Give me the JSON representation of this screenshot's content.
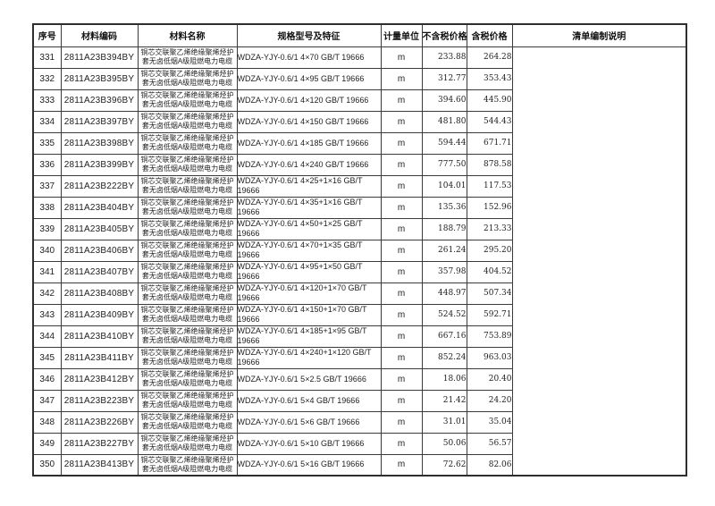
{
  "table": {
    "headers": {
      "no": "序号",
      "code": "材料编码",
      "name": "材料名称",
      "spec": "规格型号及特征",
      "unit": "计量单位",
      "price_ex_tax": "不含税价格",
      "price_inc_tax": "含税价格",
      "notes": "清单编制说明"
    },
    "notes_value": "",
    "rows": [
      {
        "no": "331",
        "code": "2811A23B394BY",
        "name": "铜芯交联聚乙烯绝缘聚烯烃护套无卤低烟A级阻燃电力电缆",
        "spec": "WDZA-YJY-0.6/1 4×70 GB/T 19666",
        "unit": "m",
        "price_ex_tax": "233.88",
        "price_inc_tax": "264.28"
      },
      {
        "no": "332",
        "code": "2811A23B395BY",
        "name": "铜芯交联聚乙烯绝缘聚烯烃护套无卤低烟A级阻燃电力电缆",
        "spec": "WDZA-YJY-0.6/1 4×95 GB/T 19666",
        "unit": "m",
        "price_ex_tax": "312.77",
        "price_inc_tax": "353.43"
      },
      {
        "no": "333",
        "code": "2811A23B396BY",
        "name": "铜芯交联聚乙烯绝缘聚烯烃护套无卤低烟A级阻燃电力电缆",
        "spec": "WDZA-YJY-0.6/1 4×120 GB/T 19666",
        "unit": "m",
        "price_ex_tax": "394.60",
        "price_inc_tax": "445.90"
      },
      {
        "no": "334",
        "code": "2811A23B397BY",
        "name": "铜芯交联聚乙烯绝缘聚烯烃护套无卤低烟A级阻燃电力电缆",
        "spec": "WDZA-YJY-0.6/1 4×150 GB/T 19666",
        "unit": "m",
        "price_ex_tax": "481.80",
        "price_inc_tax": "544.43"
      },
      {
        "no": "335",
        "code": "2811A23B398BY",
        "name": "铜芯交联聚乙烯绝缘聚烯烃护套无卤低烟A级阻燃电力电缆",
        "spec": "WDZA-YJY-0.6/1 4×185 GB/T 19666",
        "unit": "m",
        "price_ex_tax": "594.44",
        "price_inc_tax": "671.71"
      },
      {
        "no": "336",
        "code": "2811A23B399BY",
        "name": "铜芯交联聚乙烯绝缘聚烯烃护套无卤低烟A级阻燃电力电缆",
        "spec": "WDZA-YJY-0.6/1 4×240 GB/T 19666",
        "unit": "m",
        "price_ex_tax": "777.50",
        "price_inc_tax": "878.58"
      },
      {
        "no": "337",
        "code": "2811A23B222BY",
        "name": "铜芯交联聚乙烯绝缘聚烯烃护套无卤低烟A级阻燃电力电缆",
        "spec": "WDZA-YJY-0.6/1 4×25+1×16 GB/T 19666",
        "unit": "m",
        "price_ex_tax": "104.01",
        "price_inc_tax": "117.53"
      },
      {
        "no": "338",
        "code": "2811A23B404BY",
        "name": "铜芯交联聚乙烯绝缘聚烯烃护套无卤低烟A级阻燃电力电缆",
        "spec": "WDZA-YJY-0.6/1 4×35+1×16 GB/T 19666",
        "unit": "m",
        "price_ex_tax": "135.36",
        "price_inc_tax": "152.96"
      },
      {
        "no": "339",
        "code": "2811A23B405BY",
        "name": "铜芯交联聚乙烯绝缘聚烯烃护套无卤低烟A级阻燃电力电缆",
        "spec": "WDZA-YJY-0.6/1 4×50+1×25 GB/T 19666",
        "unit": "m",
        "price_ex_tax": "188.79",
        "price_inc_tax": "213.33"
      },
      {
        "no": "340",
        "code": "2811A23B406BY",
        "name": "铜芯交联聚乙烯绝缘聚烯烃护套无卤低烟A级阻燃电力电缆",
        "spec": "WDZA-YJY-0.6/1 4×70+1×35 GB/T 19666",
        "unit": "m",
        "price_ex_tax": "261.24",
        "price_inc_tax": "295.20"
      },
      {
        "no": "341",
        "code": "2811A23B407BY",
        "name": "铜芯交联聚乙烯绝缘聚烯烃护套无卤低烟A级阻燃电力电缆",
        "spec": "WDZA-YJY-0.6/1 4×95+1×50 GB/T 19666",
        "unit": "m",
        "price_ex_tax": "357.98",
        "price_inc_tax": "404.52"
      },
      {
        "no": "342",
        "code": "2811A23B408BY",
        "name": "铜芯交联聚乙烯绝缘聚烯烃护套无卤低烟A级阻燃电力电缆",
        "spec": "WDZA-YJY-0.6/1 4×120+1×70 GB/T 19666",
        "unit": "m",
        "price_ex_tax": "448.97",
        "price_inc_tax": "507.34"
      },
      {
        "no": "343",
        "code": "2811A23B409BY",
        "name": "铜芯交联聚乙烯绝缘聚烯烃护套无卤低烟A级阻燃电力电缆",
        "spec": "WDZA-YJY-0.6/1 4×150+1×70 GB/T 19666",
        "unit": "m",
        "price_ex_tax": "524.52",
        "price_inc_tax": "592.71"
      },
      {
        "no": "344",
        "code": "2811A23B410BY",
        "name": "铜芯交联聚乙烯绝缘聚烯烃护套无卤低烟A级阻燃电力电缆",
        "spec": "WDZA-YJY-0.6/1 4×185+1×95 GB/T 19666",
        "unit": "m",
        "price_ex_tax": "667.16",
        "price_inc_tax": "753.89"
      },
      {
        "no": "345",
        "code": "2811A23B411BY",
        "name": "铜芯交联聚乙烯绝缘聚烯烃护套无卤低烟A级阻燃电力电缆",
        "spec": "WDZA-YJY-0.6/1 4×240+1×120 GB/T 19666",
        "unit": "m",
        "price_ex_tax": "852.24",
        "price_inc_tax": "963.03"
      },
      {
        "no": "346",
        "code": "2811A23B412BY",
        "name": "铜芯交联聚乙烯绝缘聚烯烃护套无卤低烟A级阻燃电力电缆",
        "spec": "WDZA-YJY-0.6/1 5×2.5 GB/T 19666",
        "unit": "m",
        "price_ex_tax": "18.06",
        "price_inc_tax": "20.40"
      },
      {
        "no": "347",
        "code": "2811A23B223BY",
        "name": "铜芯交联聚乙烯绝缘聚烯烃护套无卤低烟A级阻燃电力电缆",
        "spec": "WDZA-YJY-0.6/1 5×4 GB/T 19666",
        "unit": "m",
        "price_ex_tax": "21.42",
        "price_inc_tax": "24.20"
      },
      {
        "no": "348",
        "code": "2811A23B226BY",
        "name": "铜芯交联聚乙烯绝缘聚烯烃护套无卤低烟A级阻燃电力电缆",
        "spec": "WDZA-YJY-0.6/1 5×6 GB/T 19666",
        "unit": "m",
        "price_ex_tax": "31.01",
        "price_inc_tax": "35.04"
      },
      {
        "no": "349",
        "code": "2811A23B227BY",
        "name": "铜芯交联聚乙烯绝缘聚烯烃护套无卤低烟A级阻燃电力电缆",
        "spec": "WDZA-YJY-0.6/1 5×10 GB/T 19666",
        "unit": "m",
        "price_ex_tax": "50.06",
        "price_inc_tax": "56.57"
      },
      {
        "no": "350",
        "code": "2811A23B413BY",
        "name": "铜芯交联聚乙烯绝缘聚烯烃护套无卤低烟A级阻燃电力电缆",
        "spec": "WDZA-YJY-0.6/1 5×16 GB/T 19666",
        "unit": "m",
        "price_ex_tax": "72.62",
        "price_inc_tax": "82.06"
      }
    ]
  }
}
